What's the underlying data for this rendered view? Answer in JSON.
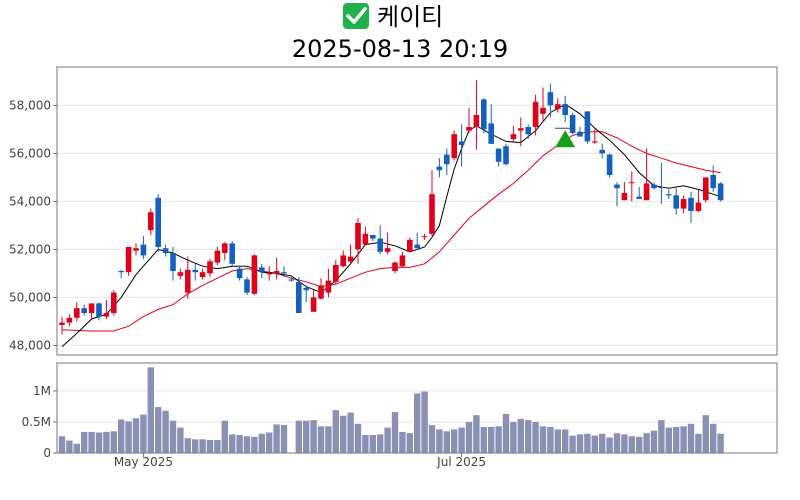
{
  "title": {
    "company": "케이티",
    "datetime": "2025-08-13 20:19",
    "check_icon": "check-mark-icon",
    "check_color": "#21b04b"
  },
  "chart_data": [
    {
      "type": "candlestick",
      "name": "price",
      "ylim": [
        47600,
        59600
      ],
      "yticks": [
        48000,
        50000,
        52000,
        54000,
        56000,
        58000
      ],
      "ytick_labels": [
        "48,000",
        "50,000",
        "52,000",
        "54,000",
        "56,000",
        "58,000"
      ],
      "grid": true,
      "up_color": "#e0001b",
      "down_color": "#1560bd",
      "ma_short_color": "#000000",
      "ma_long_color": "#e0001b",
      "signal": {
        "type": "buy",
        "marker": "triangle-up",
        "color": "#1a9e1a",
        "index": 68
      },
      "candles": [
        [
          48850,
          49200,
          48450,
          48950
        ],
        [
          48950,
          49300,
          48800,
          49150
        ],
        [
          49150,
          49800,
          49000,
          49550
        ],
        [
          49550,
          49700,
          49250,
          49350
        ],
        [
          49350,
          49750,
          49100,
          49750
        ],
        [
          49750,
          49800,
          49050,
          49200
        ],
        [
          49200,
          49900,
          49100,
          49350
        ],
        [
          49350,
          50300,
          49250,
          50200
        ],
        [
          51100,
          51150,
          50800,
          51050
        ],
        [
          51050,
          52100,
          50900,
          52100
        ],
        [
          51950,
          52250,
          51750,
          52050
        ],
        [
          52200,
          52550,
          51600,
          51750
        ],
        [
          52800,
          53700,
          52600,
          53550
        ],
        [
          54150,
          54300,
          51900,
          52100
        ],
        [
          52050,
          52200,
          51700,
          51850
        ],
        [
          51850,
          52100,
          50700,
          51100
        ],
        [
          50900,
          51200,
          50750,
          51050
        ],
        [
          50200,
          51700,
          49950,
          51150
        ],
        [
          51150,
          51400,
          50700,
          51050
        ],
        [
          50850,
          51200,
          50750,
          51050
        ],
        [
          51000,
          51600,
          50850,
          51500
        ],
        [
          51450,
          52100,
          51350,
          51950
        ],
        [
          51850,
          52300,
          51550,
          52250
        ],
        [
          52250,
          52350,
          51300,
          51400
        ],
        [
          51200,
          51300,
          50700,
          50800
        ],
        [
          50750,
          50850,
          50100,
          50200
        ],
        [
          50150,
          51800,
          50100,
          51750
        ],
        [
          51250,
          51400,
          50800,
          51050
        ],
        [
          51000,
          51300,
          50700,
          51000
        ],
        [
          51000,
          51650,
          50750,
          51100
        ],
        [
          51050,
          51300,
          50850,
          51000
        ],
        [
          50750,
          50850,
          50650,
          50700
        ],
        [
          50650,
          50850,
          49350,
          49350
        ],
        [
          50400,
          50500,
          49800,
          50300
        ],
        [
          49400,
          50300,
          49400,
          50000
        ],
        [
          49950,
          50800,
          49900,
          50500
        ],
        [
          50200,
          51200,
          50000,
          50700
        ],
        [
          50650,
          51550,
          50550,
          51350
        ],
        [
          51300,
          51950,
          51250,
          51750
        ],
        [
          51500,
          52200,
          51400,
          51700
        ],
        [
          52000,
          53300,
          51400,
          53100
        ],
        [
          52200,
          52950,
          52200,
          52650
        ],
        [
          52600,
          52600,
          52350,
          52450
        ],
        [
          52450,
          53000,
          51800,
          51900
        ],
        [
          51900,
          52700,
          51800,
          52050
        ],
        [
          51100,
          51500,
          51000,
          51450
        ],
        [
          51300,
          51900,
          51250,
          51750
        ],
        [
          51900,
          52500,
          51900,
          52400
        ],
        [
          52200,
          52700,
          52050,
          52050
        ],
        [
          52550,
          52650,
          52400,
          52550
        ],
        [
          52650,
          55300,
          52550,
          54300
        ],
        [
          55450,
          55800,
          55000,
          55300
        ],
        [
          55950,
          56200,
          55100,
          55550
        ],
        [
          55800,
          56950,
          55700,
          56800
        ],
        [
          56500,
          57200,
          55450,
          56350
        ],
        [
          56950,
          57900,
          56850,
          57100
        ],
        [
          57100,
          59050,
          56150,
          57600
        ],
        [
          58250,
          58300,
          56850,
          57000
        ],
        [
          57250,
          58050,
          56400,
          56400
        ],
        [
          56200,
          56200,
          55450,
          55650
        ],
        [
          56300,
          56400,
          55500,
          55550
        ],
        [
          56600,
          57150,
          56500,
          56800
        ],
        [
          56950,
          57500,
          56300,
          57050
        ],
        [
          57100,
          57200,
          56600,
          56800
        ],
        [
          57100,
          58450,
          56750,
          58150
        ],
        [
          57650,
          58750,
          57300,
          57900
        ],
        [
          58550,
          58900,
          57500,
          58000
        ],
        [
          57850,
          58300,
          57700,
          58050
        ],
        [
          58050,
          58400,
          57300,
          57600
        ],
        [
          57600,
          57700,
          56800,
          56850
        ],
        [
          56900,
          57100,
          56700,
          56700
        ],
        [
          57750,
          57750,
          56400,
          56500
        ],
        [
          56450,
          57000,
          56400,
          56500
        ],
        [
          56150,
          56400,
          55800,
          56000
        ],
        [
          55950,
          56000,
          55000,
          55100
        ],
        [
          54700,
          54800,
          53800,
          54550
        ],
        [
          54050,
          54800,
          54050,
          54350
        ],
        [
          54800,
          55250,
          54000,
          54800
        ],
        [
          54200,
          54600,
          54100,
          54100
        ],
        [
          54050,
          56200,
          54050,
          54750
        ],
        [
          54700,
          54800,
          54500,
          54550
        ],
        [
          54600,
          55600,
          53900,
          54550
        ],
        [
          54300,
          54500,
          54100,
          54250
        ],
        [
          54250,
          54550,
          53450,
          53700
        ],
        [
          53700,
          54250,
          53500,
          54100
        ],
        [
          54150,
          54400,
          53100,
          53600
        ],
        [
          53600,
          54500,
          53550,
          53950
        ],
        [
          54050,
          55000,
          53950,
          55000
        ],
        [
          55100,
          55500,
          54400,
          54550
        ],
        [
          54750,
          54800,
          54000,
          54050
        ]
      ],
      "ma_short": [
        [
          0,
          47950
        ],
        [
          2,
          48500
        ],
        [
          4,
          49100
        ],
        [
          6,
          49300
        ],
        [
          8,
          50000
        ],
        [
          10,
          50950
        ],
        [
          12,
          51650
        ],
        [
          13,
          52000
        ],
        [
          15,
          51850
        ],
        [
          17,
          51550
        ],
        [
          19,
          51300
        ],
        [
          21,
          51200
        ],
        [
          23,
          51300
        ],
        [
          25,
          51300
        ],
        [
          27,
          51050
        ],
        [
          29,
          51000
        ],
        [
          31,
          50900
        ],
        [
          33,
          50450
        ],
        [
          35,
          50200
        ],
        [
          37,
          50700
        ],
        [
          39,
          51400
        ],
        [
          41,
          52200
        ],
        [
          43,
          52300
        ],
        [
          45,
          52150
        ],
        [
          47,
          51900
        ],
        [
          49,
          52100
        ],
        [
          50,
          52500
        ],
        [
          51,
          53000
        ],
        [
          52,
          54200
        ],
        [
          53,
          55350
        ],
        [
          54,
          56200
        ],
        [
          55,
          56950
        ],
        [
          56,
          57150
        ],
        [
          58,
          56800
        ],
        [
          60,
          56500
        ],
        [
          62,
          56450
        ],
        [
          64,
          56950
        ],
        [
          66,
          57700
        ],
        [
          68,
          58050
        ],
        [
          70,
          57650
        ],
        [
          72,
          57050
        ],
        [
          74,
          56550
        ],
        [
          76,
          55950
        ],
        [
          78,
          55200
        ],
        [
          80,
          54650
        ],
        [
          82,
          54550
        ],
        [
          84,
          54650
        ],
        [
          86,
          54500
        ],
        [
          88,
          54300
        ],
        [
          89,
          54200
        ]
      ],
      "ma_long": [
        [
          0,
          48650
        ],
        [
          4,
          48600
        ],
        [
          7,
          48600
        ],
        [
          9,
          48800
        ],
        [
          11,
          49200
        ],
        [
          13,
          49500
        ],
        [
          15,
          49700
        ],
        [
          17,
          50150
        ],
        [
          19,
          50500
        ],
        [
          21,
          50800
        ],
        [
          23,
          51100
        ],
        [
          25,
          51200
        ],
        [
          27,
          51100
        ],
        [
          29,
          51000
        ],
        [
          31,
          50800
        ],
        [
          33,
          50650
        ],
        [
          35,
          50450
        ],
        [
          37,
          50550
        ],
        [
          39,
          50800
        ],
        [
          41,
          51050
        ],
        [
          43,
          51200
        ],
        [
          45,
          51250
        ],
        [
          47,
          51250
        ],
        [
          49,
          51400
        ],
        [
          51,
          51900
        ],
        [
          53,
          52600
        ],
        [
          55,
          53300
        ],
        [
          57,
          53800
        ],
        [
          59,
          54300
        ],
        [
          61,
          54750
        ],
        [
          63,
          55300
        ],
        [
          65,
          55900
        ],
        [
          67,
          56350
        ],
        [
          69,
          56750
        ],
        [
          71,
          56900
        ],
        [
          73,
          56900
        ],
        [
          75,
          56650
        ],
        [
          77,
          56300
        ],
        [
          79,
          56000
        ],
        [
          81,
          55800
        ],
        [
          83,
          55600
        ],
        [
          85,
          55450
        ],
        [
          87,
          55300
        ],
        [
          89,
          55200
        ]
      ]
    },
    {
      "type": "bar",
      "name": "volume",
      "ylim": [
        0,
        1450000
      ],
      "yticks": [
        0,
        500000,
        1000000
      ],
      "ytick_labels": [
        "0",
        "0.5M",
        "1M"
      ],
      "color": "#8a91b5",
      "x_tick_labels": [
        {
          "label": "May 2025",
          "index": 11
        },
        {
          "label": "Jul 2025",
          "index": 54
        }
      ],
      "values": [
        270000,
        200000,
        150000,
        340000,
        340000,
        330000,
        340000,
        350000,
        540000,
        510000,
        560000,
        620000,
        1380000,
        740000,
        680000,
        520000,
        410000,
        240000,
        220000,
        220000,
        210000,
        210000,
        520000,
        300000,
        290000,
        270000,
        260000,
        310000,
        330000,
        460000,
        450000,
        0,
        520000,
        520000,
        530000,
        430000,
        430000,
        690000,
        600000,
        650000,
        470000,
        290000,
        290000,
        300000,
        410000,
        660000,
        340000,
        320000,
        960000,
        990000,
        450000,
        380000,
        350000,
        380000,
        410000,
        500000,
        610000,
        420000,
        420000,
        430000,
        630000,
        500000,
        550000,
        530000,
        500000,
        430000,
        420000,
        380000,
        380000,
        280000,
        300000,
        310000,
        280000,
        310000,
        250000,
        320000,
        300000,
        270000,
        260000,
        320000,
        360000,
        530000,
        410000,
        420000,
        430000,
        470000,
        310000,
        610000,
        470000,
        310000
      ]
    }
  ]
}
